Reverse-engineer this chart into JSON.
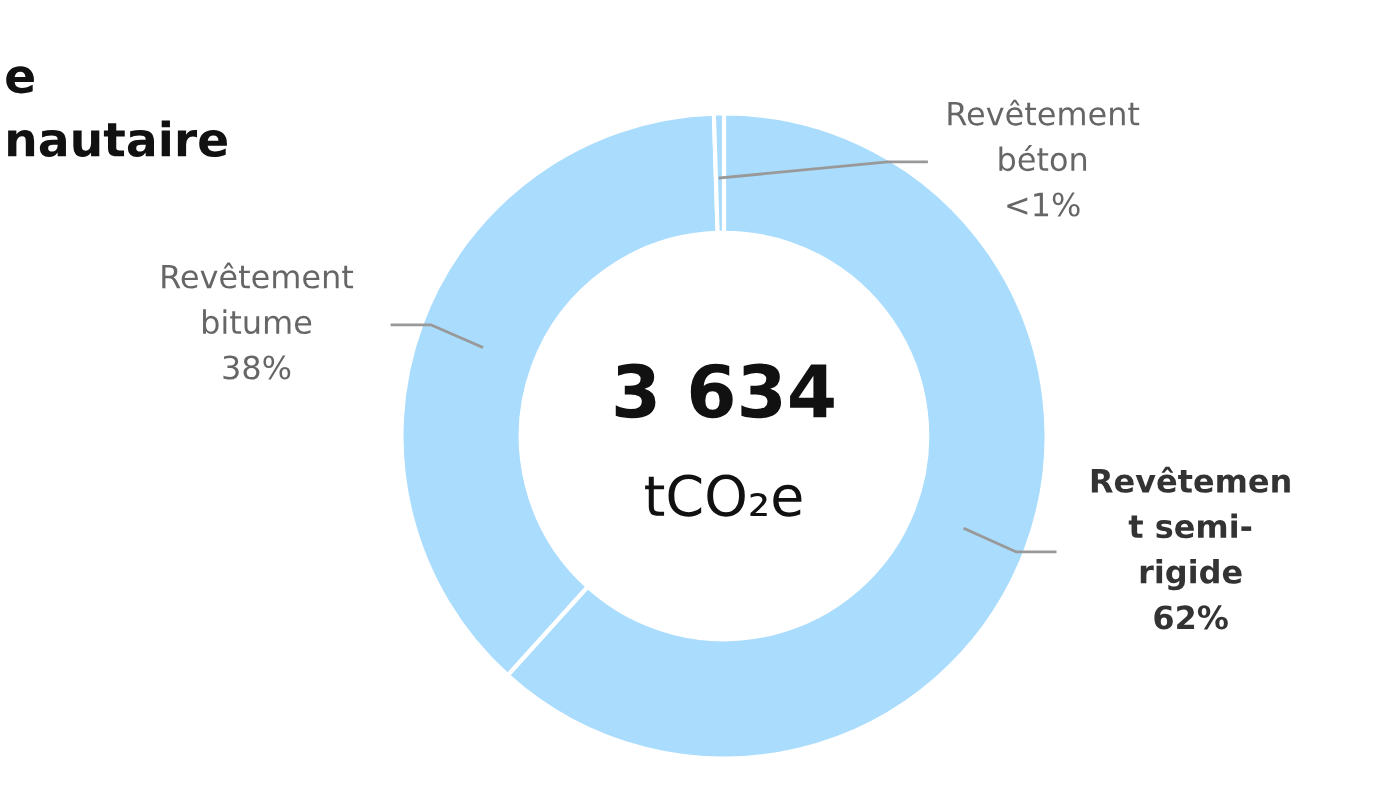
{
  "chart_data": {
    "type": "donut",
    "title": "e\nnautaire",
    "categories": [
      "Revêtemen\nt semi-\nrigide",
      "Revêtement\nbitume",
      "Revêtement\nbéton"
    ],
    "values": [
      61.7,
      37.8,
      0.5
    ],
    "colors": [
      "#a9dcfd",
      "#a9dcfd",
      "#a9dcfd"
    ],
    "value_labels": [
      "62%",
      "38%",
      "<1%"
    ],
    "annotations": [
      "3 634",
      "tCO₂e"
    ]
  }
}
